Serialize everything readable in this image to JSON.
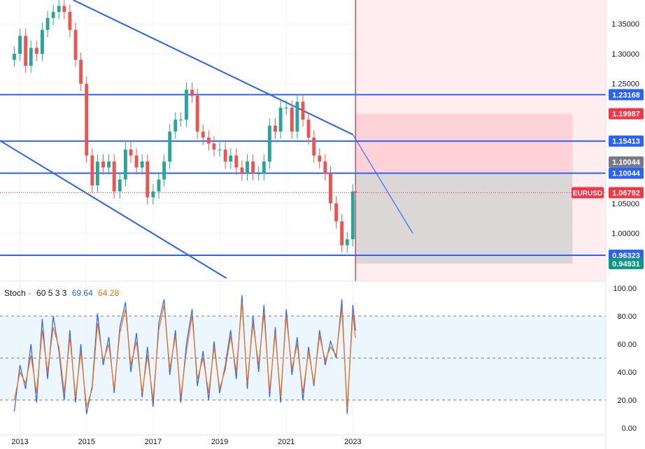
{
  "chart_data": [
    {
      "type": "candlestick",
      "symbol": "EURUSD",
      "last_price": "1.06792",
      "colors": {
        "up": "#26a69a",
        "down": "#ef5350",
        "trendline": "#2962ff",
        "short_zone": "#ffcdd2",
        "target_zone": "#cfcfcf"
      },
      "y_axis_ticks": [
        "1.35000",
        "1.30000",
        "1.25000",
        "1.05000",
        "1.00000"
      ],
      "ylim": [
        0.92,
        1.39
      ],
      "horizontal_levels": [
        {
          "value": 1.23168,
          "label": "1.23168",
          "color": "#2962ff"
        },
        {
          "value": 1.15413,
          "label": "1.15413",
          "color": "#2962ff"
        },
        {
          "value": 1.10044,
          "label": "1.10044",
          "color": "#2962ff"
        },
        {
          "value": 0.96323,
          "label": "0.96323",
          "color": "#2962ff"
        }
      ],
      "price_tags": [
        {
          "value": 1.19987,
          "label": "1.19987",
          "color": "#f23645"
        },
        {
          "value": 1.10044,
          "label": "1.10044",
          "color": "#787b86"
        },
        {
          "value": 1.06792,
          "label": "1.06792",
          "color": "#f23645"
        },
        {
          "value": 0.94931,
          "label": "0.94931",
          "color": "#089981"
        }
      ],
      "position_tool": {
        "entry": 1.10044,
        "stop": 1.19987,
        "target": 0.94931
      },
      "trendlines": [
        {
          "from": [
            2014.6,
            1.39
          ],
          "to": [
            2023.0,
            1.165
          ]
        },
        {
          "from": [
            2023.0,
            1.165
          ],
          "to": [
            2024.8,
            1.0
          ]
        },
        {
          "from": [
            2012.1,
            1.165
          ],
          "to": [
            2019.2,
            0.925
          ]
        }
      ],
      "close_series": [
        [
          2012.83,
          1.3
        ],
        [
          2013.0,
          1.33
        ],
        [
          2013.17,
          1.28
        ],
        [
          2013.33,
          1.31
        ],
        [
          2013.5,
          1.3
        ],
        [
          2013.67,
          1.34
        ],
        [
          2013.83,
          1.36
        ],
        [
          2014.0,
          1.37
        ],
        [
          2014.17,
          1.38
        ],
        [
          2014.33,
          1.37
        ],
        [
          2014.5,
          1.34
        ],
        [
          2014.67,
          1.29
        ],
        [
          2014.83,
          1.25
        ],
        [
          2015.0,
          1.13
        ],
        [
          2015.17,
          1.08
        ],
        [
          2015.33,
          1.12
        ],
        [
          2015.5,
          1.11
        ],
        [
          2015.67,
          1.12
        ],
        [
          2015.83,
          1.07
        ],
        [
          2016.0,
          1.09
        ],
        [
          2016.17,
          1.14
        ],
        [
          2016.33,
          1.13
        ],
        [
          2016.5,
          1.11
        ],
        [
          2016.67,
          1.12
        ],
        [
          2016.83,
          1.06
        ],
        [
          2017.0,
          1.07
        ],
        [
          2017.17,
          1.09
        ],
        [
          2017.33,
          1.12
        ],
        [
          2017.5,
          1.17
        ],
        [
          2017.67,
          1.19
        ],
        [
          2017.83,
          1.19
        ],
        [
          2018.0,
          1.24
        ],
        [
          2018.17,
          1.23
        ],
        [
          2018.33,
          1.17
        ],
        [
          2018.5,
          1.16
        ],
        [
          2018.67,
          1.15
        ],
        [
          2018.83,
          1.14
        ],
        [
          2019.0,
          1.14
        ],
        [
          2019.17,
          1.12
        ],
        [
          2019.33,
          1.13
        ],
        [
          2019.5,
          1.11
        ],
        [
          2019.67,
          1.1
        ],
        [
          2019.83,
          1.12
        ],
        [
          2020.0,
          1.1
        ],
        [
          2020.17,
          1.1
        ],
        [
          2020.33,
          1.12
        ],
        [
          2020.5,
          1.18
        ],
        [
          2020.67,
          1.17
        ],
        [
          2020.83,
          1.21
        ],
        [
          2021.0,
          1.21
        ],
        [
          2021.17,
          1.17
        ],
        [
          2021.33,
          1.22
        ],
        [
          2021.5,
          1.19
        ],
        [
          2021.67,
          1.16
        ],
        [
          2021.83,
          1.13
        ],
        [
          2022.0,
          1.12
        ],
        [
          2022.17,
          1.1
        ],
        [
          2022.33,
          1.05
        ],
        [
          2022.5,
          1.02
        ],
        [
          2022.67,
          0.98
        ],
        [
          2022.83,
          0.99
        ],
        [
          2023.0,
          1.07
        ],
        [
          2023.08,
          1.068
        ]
      ],
      "x_axis_ticks": [
        "2013",
        "2015",
        "2017",
        "2019",
        "2021",
        "2023"
      ],
      "xlim": [
        2012.4,
        2030.6
      ]
    },
    {
      "type": "line",
      "title": "Stoch",
      "params": "60 5 3 3",
      "k_value": "69.64",
      "d_value": "64.28",
      "ylim": [
        0,
        100
      ],
      "y_axis_ticks": [
        "100.00",
        "80.00",
        "60.00",
        "40.00",
        "20.00",
        "0.00"
      ],
      "bands": {
        "upper": 80,
        "middle": 50,
        "lower": 20
      },
      "series": [
        {
          "color": "#2962ff",
          "values": [
            [
              2012.83,
              12
            ],
            [
              2013.0,
              45
            ],
            [
              2013.17,
              28
            ],
            [
              2013.33,
              60
            ],
            [
              2013.5,
              18
            ],
            [
              2013.67,
              78
            ],
            [
              2013.83,
              35
            ],
            [
              2014.0,
              80
            ],
            [
              2014.17,
              55
            ],
            [
              2014.33,
              20
            ],
            [
              2014.5,
              70
            ],
            [
              2014.67,
              18
            ],
            [
              2014.83,
              60
            ],
            [
              2015.0,
              10
            ],
            [
              2015.17,
              30
            ],
            [
              2015.33,
              82
            ],
            [
              2015.5,
              45
            ],
            [
              2015.67,
              65
            ],
            [
              2015.83,
              25
            ],
            [
              2016.0,
              72
            ],
            [
              2016.17,
              90
            ],
            [
              2016.33,
              40
            ],
            [
              2016.5,
              68
            ],
            [
              2016.67,
              22
            ],
            [
              2016.83,
              58
            ],
            [
              2017.0,
              15
            ],
            [
              2017.17,
              75
            ],
            [
              2017.33,
              92
            ],
            [
              2017.5,
              38
            ],
            [
              2017.67,
              70
            ],
            [
              2017.83,
              18
            ],
            [
              2018.0,
              60
            ],
            [
              2018.17,
              85
            ],
            [
              2018.33,
              30
            ],
            [
              2018.5,
              55
            ],
            [
              2018.67,
              20
            ],
            [
              2018.83,
              62
            ],
            [
              2019.0,
              25
            ],
            [
              2019.17,
              45
            ],
            [
              2019.33,
              70
            ],
            [
              2019.5,
              35
            ],
            [
              2019.67,
              95
            ],
            [
              2019.83,
              28
            ],
            [
              2020.0,
              80
            ],
            [
              2020.17,
              40
            ],
            [
              2020.33,
              88
            ],
            [
              2020.5,
              22
            ],
            [
              2020.67,
              72
            ],
            [
              2020.83,
              18
            ],
            [
              2021.0,
              85
            ],
            [
              2021.17,
              38
            ],
            [
              2021.33,
              65
            ],
            [
              2021.5,
              20
            ],
            [
              2021.67,
              58
            ],
            [
              2021.83,
              30
            ],
            [
              2022.0,
              70
            ],
            [
              2022.17,
              45
            ],
            [
              2022.33,
              62
            ],
            [
              2022.5,
              50
            ],
            [
              2022.67,
              92
            ],
            [
              2022.83,
              10
            ],
            [
              2023.0,
              88
            ],
            [
              2023.08,
              69.64
            ]
          ]
        },
        {
          "color": "#ff6d00",
          "values": [
            [
              2012.83,
              20
            ],
            [
              2013.0,
              40
            ],
            [
              2013.17,
              32
            ],
            [
              2013.33,
              52
            ],
            [
              2013.5,
              25
            ],
            [
              2013.67,
              70
            ],
            [
              2013.83,
              40
            ],
            [
              2014.0,
              72
            ],
            [
              2014.17,
              58
            ],
            [
              2014.33,
              25
            ],
            [
              2014.5,
              65
            ],
            [
              2014.67,
              22
            ],
            [
              2014.83,
              55
            ],
            [
              2015.0,
              15
            ],
            [
              2015.17,
              28
            ],
            [
              2015.33,
              75
            ],
            [
              2015.5,
              48
            ],
            [
              2015.67,
              60
            ],
            [
              2015.83,
              28
            ],
            [
              2016.0,
              68
            ],
            [
              2016.17,
              85
            ],
            [
              2016.33,
              45
            ],
            [
              2016.5,
              62
            ],
            [
              2016.67,
              25
            ],
            [
              2016.83,
              52
            ],
            [
              2017.0,
              20
            ],
            [
              2017.17,
              70
            ],
            [
              2017.33,
              88
            ],
            [
              2017.5,
              42
            ],
            [
              2017.67,
              66
            ],
            [
              2017.83,
              22
            ],
            [
              2018.0,
              55
            ],
            [
              2018.17,
              80
            ],
            [
              2018.33,
              35
            ],
            [
              2018.5,
              50
            ],
            [
              2018.67,
              25
            ],
            [
              2018.83,
              58
            ],
            [
              2019.0,
              28
            ],
            [
              2019.17,
              42
            ],
            [
              2019.33,
              66
            ],
            [
              2019.5,
              40
            ],
            [
              2019.67,
              90
            ],
            [
              2019.83,
              32
            ],
            [
              2020.0,
              75
            ],
            [
              2020.17,
              45
            ],
            [
              2020.33,
              82
            ],
            [
              2020.5,
              26
            ],
            [
              2020.67,
              68
            ],
            [
              2020.83,
              22
            ],
            [
              2021.0,
              80
            ],
            [
              2021.17,
              42
            ],
            [
              2021.33,
              60
            ],
            [
              2021.5,
              25
            ],
            [
              2021.67,
              55
            ],
            [
              2021.83,
              32
            ],
            [
              2022.0,
              66
            ],
            [
              2022.17,
              48
            ],
            [
              2022.33,
              58
            ],
            [
              2022.5,
              52
            ],
            [
              2022.67,
              86
            ],
            [
              2022.83,
              14
            ],
            [
              2023.0,
              82
            ],
            [
              2023.08,
              64.28
            ]
          ]
        }
      ],
      "x_axis_ticks": [
        "2013",
        "2015",
        "2017",
        "2019",
        "2021",
        "2023"
      ]
    }
  ]
}
